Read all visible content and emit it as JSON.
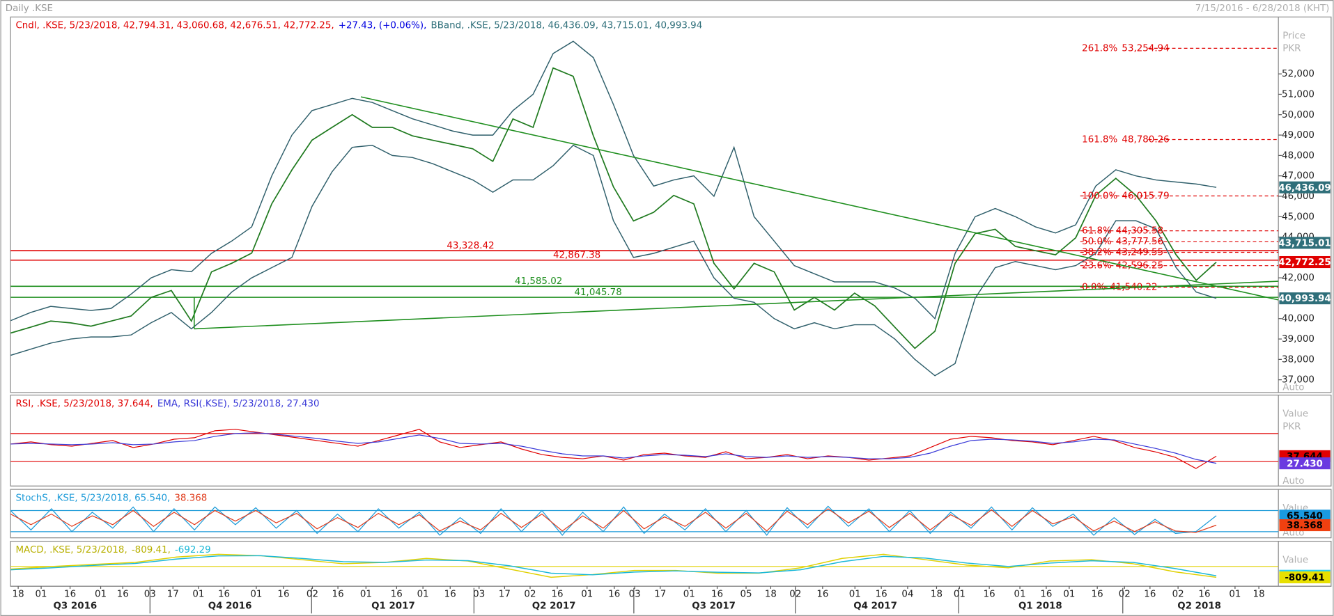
{
  "header": {
    "title": "Daily .KSE",
    "range": "7/15/2016 - 6/28/2018 (KHT)"
  },
  "chart_data": [
    {
      "type": "line",
      "legend": [
        {
          "text": "Cndl, .KSE, 5/23/2018, 42,794.31, 43,060.68, 42,676.51, 42,772.25,",
          "color": "#e00000"
        },
        {
          "text": "+27.43, (+0.06%),",
          "color": "#0000e0"
        },
        {
          "text": "BBand, .KSE, 5/23/2018, 46,436.09, 43,715.01, 40,993.94",
          "color": "#2f6f7a"
        }
      ],
      "axis_labels": [
        "Price",
        "PKR",
        "Auto"
      ],
      "ylim": [
        36375,
        54790
      ],
      "yticks": [
        {
          "value": 37000,
          "label": "37,000"
        },
        {
          "value": 38000,
          "label": "38,000"
        },
        {
          "value": 39000,
          "label": "39,000"
        },
        {
          "value": 40000,
          "label": "40,000"
        },
        {
          "value": 42000,
          "label": "42,000"
        },
        {
          "value": 44000,
          "label": "44,000"
        },
        {
          "value": 45000,
          "label": "45,000"
        },
        {
          "value": 46000,
          "label": "46,000"
        },
        {
          "value": 47000,
          "label": "47,000"
        },
        {
          "value": 48000,
          "label": "48,000"
        },
        {
          "value": 49000,
          "label": "49,000"
        },
        {
          "value": 50000,
          "label": "50,000"
        },
        {
          "value": 51000,
          "label": "51,000"
        },
        {
          "value": 52000,
          "label": "52,000"
        }
      ],
      "series": [
        {
          "color": "#1f7a1f",
          "width": 1.4,
          "values": [
            39290,
            39580,
            39880,
            39790,
            39630,
            39880,
            40130,
            41040,
            41380,
            39880,
            42290,
            42710,
            43210,
            45630,
            47290,
            48750,
            49380,
            50000,
            49380,
            49380,
            48960,
            48750,
            48540,
            48330,
            47710,
            49790,
            49380,
            52290,
            51880,
            48960,
            46460,
            44790,
            45210,
            46040,
            45630,
            42710,
            41460,
            42710,
            42290,
            40420,
            41040,
            40420,
            41250,
            40630,
            39580,
            38540,
            39380,
            42710,
            44170,
            44380,
            43540,
            43330,
            43130,
            43960,
            46040,
            46880,
            46040,
            44790,
            43130,
            41880,
            42772.25
          ]
        },
        {
          "color": "#2f5f6b",
          "width": 1.2,
          "values": [
            39900,
            40300,
            40600,
            40500,
            40400,
            40500,
            41200,
            42000,
            42400,
            42300,
            43200,
            43800,
            44500,
            47000,
            49000,
            50200,
            50500,
            50800,
            50600,
            50200,
            49800,
            49500,
            49200,
            49000,
            49000,
            50200,
            51000,
            53000,
            53600,
            52800,
            50500,
            48000,
            46500,
            46800,
            47000,
            46000,
            48400,
            45000,
            43800,
            42600,
            42200,
            41800,
            41800,
            41800,
            41500,
            41000,
            40000,
            43200,
            45000,
            45400,
            45000,
            44500,
            44200,
            44600,
            46500,
            47300,
            47000,
            46800,
            46700,
            46600,
            46436.09
          ]
        },
        {
          "color": "#2f5f6b",
          "width": 1.2,
          "values": [
            38200,
            38500,
            38800,
            39000,
            39100,
            39100,
            39200,
            39800,
            40300,
            39500,
            40300,
            41300,
            42000,
            42500,
            43000,
            45500,
            47200,
            48400,
            48500,
            48000,
            47900,
            47600,
            47200,
            46800,
            46200,
            46800,
            46800,
            47500,
            48500,
            48000,
            44800,
            43000,
            43200,
            43500,
            43800,
            42000,
            41000,
            40800,
            40000,
            39500,
            39800,
            39500,
            39700,
            39700,
            39000,
            38000,
            37200,
            37800,
            41000,
            42500,
            42800,
            42600,
            42400,
            42600,
            43200,
            44800,
            44800,
            44400,
            42500,
            41300,
            40993.94
          ]
        }
      ],
      "hlines": [
        {
          "value": 43328.42,
          "label": "43,328.42",
          "color": "#e00000"
        },
        {
          "value": 42867.38,
          "label": "42,867.38",
          "color": "#e00000"
        },
        {
          "value": 41585.02,
          "label": "41,585.02",
          "color": "#1f8f1f"
        },
        {
          "value": 41045.78,
          "label": "41,045.78",
          "color": "#1f8f1f"
        }
      ],
      "fibs": [
        {
          "level": "261.8%",
          "value": 53254.94,
          "label": "53,254.94"
        },
        {
          "level": "161.8%",
          "value": 48780.26,
          "label": "48,780.26"
        },
        {
          "level": "100.0%",
          "value": 46015.79,
          "label": "46,015.79"
        },
        {
          "level": "61.8%",
          "value": 44305.58,
          "label": "44,305.58"
        },
        {
          "level": "50.0%",
          "value": 43777.56,
          "label": "43,777.56"
        },
        {
          "level": "38.2%",
          "value": 43249.55,
          "label": "43,249.55"
        },
        {
          "level": "23.6%",
          "value": 42596.25,
          "label": "42,596.25"
        },
        {
          "level": "0.0%",
          "value": 41540.22,
          "label": "41,540.22"
        }
      ],
      "fib_color": "#e00000",
      "value_boxes": [
        {
          "value": 46436.09,
          "label": "46,436.09",
          "color": "#2f6f7a",
          "text_color": "#ffffff"
        },
        {
          "value": 43715.01,
          "label": "43,715.01",
          "color": "#2f6f7a",
          "text_color": "#ffffff"
        },
        {
          "value": 42772.25,
          "label": "42,772.25",
          "color": "#e00000",
          "text_color": "#ffffff"
        },
        {
          "value": 40993.94,
          "label": "40,993.94",
          "color": "#2f6f7a",
          "text_color": "#ffffff"
        }
      ]
    },
    {
      "type": "line",
      "legend": [
        {
          "text": "RSI, .KSE, 5/23/2018, 37.644,",
          "color": "#e00000"
        },
        {
          "text": "EMA, RSI(.KSE), 5/23/2018, 27.430",
          "color": "#3a3ad8"
        }
      ],
      "axis_labels": [
        "Value",
        "PKR",
        "Auto"
      ],
      "ylim": [
        -5,
        125
      ],
      "levels": [
        {
          "value": 70,
          "color": "#e00000"
        },
        {
          "value": 30,
          "color": "#e00000"
        }
      ],
      "series": [
        {
          "color": "#e00000",
          "width": 1,
          "values": [
            55,
            58,
            54,
            52,
            56,
            60,
            50,
            55,
            62,
            64,
            74,
            76,
            72,
            68,
            64,
            60,
            56,
            52,
            60,
            68,
            76,
            58,
            50,
            54,
            58,
            48,
            40,
            36,
            34,
            38,
            32,
            40,
            42,
            38,
            36,
            44,
            34,
            36,
            40,
            34,
            38,
            36,
            32,
            35,
            38,
            50,
            62,
            66,
            64,
            60,
            58,
            54,
            60,
            66,
            60,
            50,
            44,
            36,
            20,
            37.644
          ]
        },
        {
          "color": "#3a3ad8",
          "width": 1,
          "values": [
            55,
            56,
            55,
            54,
            55,
            57,
            54,
            55,
            58,
            60,
            66,
            70,
            71,
            69,
            66,
            63,
            59,
            56,
            58,
            63,
            68,
            63,
            56,
            55,
            56,
            52,
            46,
            41,
            38,
            38,
            35,
            38,
            40,
            39,
            37,
            41,
            37,
            36,
            38,
            36,
            37,
            36,
            34,
            34,
            36,
            42,
            52,
            60,
            62,
            61,
            59,
            56,
            58,
            62,
            61,
            55,
            49,
            42,
            33,
            27.43
          ]
        }
      ],
      "value_boxes": [
        {
          "value": 37.644,
          "label": "37.644",
          "color": "#e00000",
          "text_color": "#000000"
        },
        {
          "value": 27.43,
          "label": "27.430",
          "color": "#6a3ae0",
          "text_color": "#ffffff"
        }
      ]
    },
    {
      "type": "line",
      "legend": [
        {
          "text": "StochS, .KSE, 5/23/2018, 65.540,",
          "color": "#1a9ad8"
        },
        {
          "text": "38.368",
          "color": "#e03a1a"
        }
      ],
      "axis_labels": [
        "Value",
        "Auto"
      ],
      "ylim": [
        2.5,
        140
      ],
      "levels": [
        {
          "value": 80,
          "color": "#1a9ad8"
        },
        {
          "value": 20,
          "color": "#1a9ad8"
        }
      ],
      "series": [
        {
          "color": "#1a9ad8",
          "width": 1,
          "values": [
            80,
            25,
            85,
            20,
            75,
            30,
            90,
            20,
            85,
            25,
            90,
            40,
            88,
            30,
            80,
            15,
            70,
            20,
            85,
            30,
            75,
            10,
            60,
            15,
            85,
            20,
            80,
            10,
            75,
            20,
            90,
            15,
            70,
            25,
            85,
            20,
            80,
            10,
            88,
            30,
            92,
            35,
            85,
            20,
            80,
            15,
            75,
            30,
            90,
            25,
            88,
            35,
            70,
            10,
            60,
            12,
            55,
            15,
            20,
            65.54
          ]
        },
        {
          "color": "#e03a1a",
          "width": 1,
          "values": [
            70,
            40,
            70,
            35,
            65,
            40,
            80,
            35,
            75,
            40,
            80,
            50,
            80,
            45,
            72,
            28,
            60,
            32,
            72,
            40,
            68,
            22,
            50,
            25,
            72,
            32,
            70,
            22,
            65,
            30,
            80,
            28,
            62,
            35,
            75,
            30,
            72,
            22,
            78,
            40,
            85,
            45,
            78,
            32,
            72,
            25,
            68,
            38,
            82,
            35,
            80,
            42,
            62,
            22,
            50,
            20,
            48,
            22,
            18,
            38.368
          ]
        }
      ],
      "value_boxes": [
        {
          "value": 65.54,
          "label": "65.540",
          "color": "#1a9ae0",
          "text_color": "#000000"
        },
        {
          "value": 38.368,
          "label": "38.368",
          "color": "#f04010",
          "text_color": "#000000"
        }
      ]
    },
    {
      "type": "line",
      "legend": [
        {
          "text": "MACD, .KSE, 5/23/2018,",
          "color": "#b8b000"
        },
        {
          "text": "-809.41,",
          "color": "#b8b000"
        },
        {
          "text": "-692.29",
          "color": "#1ab8d8"
        }
      ],
      "axis_labels": [
        "Value"
      ],
      "ylim": [
        -1470,
        1870
      ],
      "levels": [
        {
          "value": 0,
          "color": "#e0d000"
        }
      ],
      "series": [
        {
          "color": "#e0d000",
          "width": 1.2,
          "values": [
            -200,
            0,
            150,
            300,
            700,
            900,
            800,
            500,
            200,
            300,
            600,
            400,
            -200,
            -800,
            -600,
            -300,
            -300,
            -500,
            -500,
            -100,
            600,
            900,
            500,
            100,
            -100,
            400,
            500,
            200,
            -400,
            -809.41
          ]
        },
        {
          "color": "#1ab8d8",
          "width": 1.2,
          "values": [
            -250,
            -100,
            80,
            220,
            550,
            780,
            800,
            600,
            350,
            300,
            480,
            430,
            50,
            -500,
            -620,
            -420,
            -330,
            -430,
            -480,
            -250,
            350,
            750,
            620,
            250,
            0,
            250,
            420,
            300,
            -150,
            -692.29
          ]
        }
      ],
      "value_boxes": [
        {
          "value": -692.29,
          "label": "-692.29",
          "color": "#30d0f0",
          "text_color": "#000000"
        },
        {
          "value": -809.41,
          "label": "-809.41",
          "color": "#e8e000",
          "text_color": "#000000"
        }
      ]
    }
  ],
  "x_axis": {
    "ticks": [
      "18",
      "01",
      "16",
      "01",
      "16",
      "03",
      "17",
      "01",
      "16",
      "01",
      "16",
      "02",
      "16",
      "01",
      "16",
      "01",
      "16",
      "03",
      "17",
      "02",
      "16",
      "01",
      "16",
      "03",
      "17",
      "01",
      "16",
      "05",
      "18",
      "02",
      "16",
      "01",
      "16",
      "04",
      "18",
      "01",
      "16",
      "01",
      "16",
      "01",
      "16",
      "02",
      "16",
      "02",
      "16",
      "01",
      "18"
    ],
    "quarters": [
      "Q3 2016",
      "Q4 2016",
      "Q1 2017",
      "Q2 2017",
      "Q3 2017",
      "Q4 2017",
      "Q1 2018",
      "Q2 2018"
    ]
  }
}
